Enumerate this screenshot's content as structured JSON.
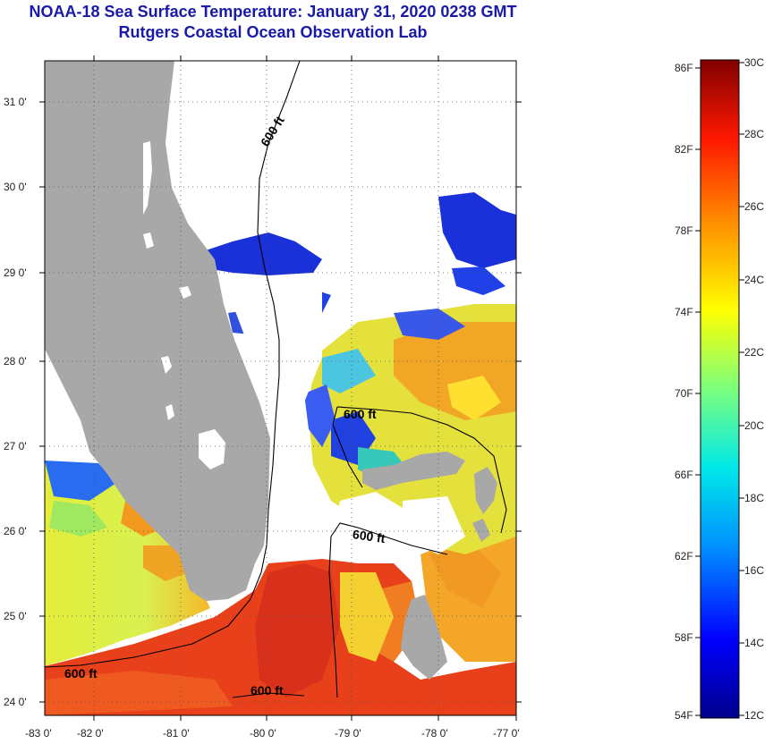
{
  "header": {
    "title": "NOAA-18 Sea Surface Temperature:  January 31, 2020 0238 GMT",
    "subtitle": "Rutgers Coastal Ocean Observation Lab"
  },
  "map": {
    "lat_ticks": [
      "31 0'",
      "30 0'",
      "29 0'",
      "28 0'",
      "27 0'",
      "26 0'",
      "25 0'",
      "24 0'"
    ],
    "lon_ticks": [
      "-83 0'",
      "-82 0'",
      "-81 0'",
      "-80 0'",
      "-79 0'",
      "-78 0'",
      "-77 0'"
    ],
    "contour_labels": [
      "600 ft",
      "600 ft",
      "600 ft",
      "600 ft",
      "600 ft"
    ]
  },
  "colorbar": {
    "fahrenheit": [
      "86F",
      "82F",
      "78F",
      "74F",
      "70F",
      "66F",
      "62F",
      "58F",
      "54F"
    ],
    "celsius": [
      "30C",
      "28C",
      "26C",
      "24C",
      "22C",
      "20C",
      "18C",
      "16C",
      "14C",
      "12C"
    ]
  },
  "colors": {
    "title": "#1a1aa8",
    "land": "#a8a8a8",
    "warm": "#e8401a",
    "cool": "#1a30d8"
  }
}
